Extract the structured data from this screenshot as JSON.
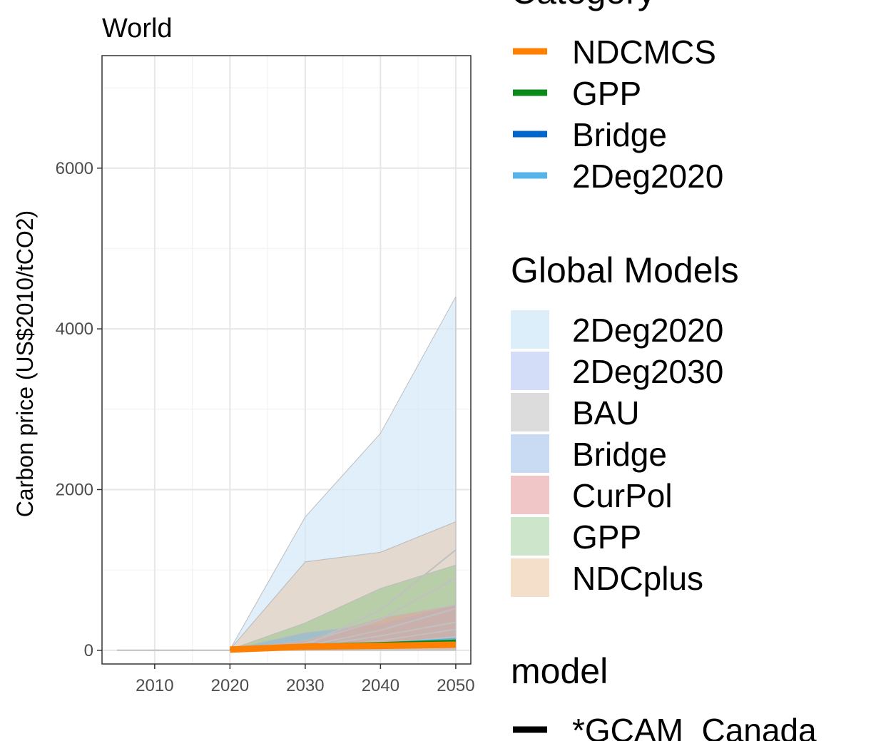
{
  "chart_data": {
    "type": "area",
    "title": "World",
    "ylabel": "Carbon price (US$2010/tCO2)",
    "xlabel": "",
    "xlim": [
      2003,
      2052
    ],
    "ylim": [
      -170,
      7400
    ],
    "x_ticks": [
      2010,
      2020,
      2030,
      2040,
      2050
    ],
    "x_tick_labels": [
      "2010",
      "2020",
      "2030",
      "2040",
      "2050"
    ],
    "y_ticks": [
      0,
      2000,
      4000,
      6000
    ],
    "y_tick_labels": [
      "0",
      "2000",
      "4000",
      "6000"
    ],
    "grid": true,
    "legend_position": "right",
    "ribbons": [
      {
        "scenario": "2Deg2020",
        "color": "#d6e9fa",
        "x": [
          2020,
          2030,
          2040,
          2050
        ],
        "lower": [
          0,
          0,
          0,
          0
        ],
        "upper": [
          10,
          1660,
          2700,
          4400
        ]
      },
      {
        "scenario": "2Deg2030",
        "color": "#c8d2f2",
        "x": [
          2020,
          2030,
          2040,
          2050
        ],
        "lower": [
          0,
          0,
          0,
          0
        ],
        "upper": [
          10,
          1100,
          1220,
          1600
        ]
      },
      {
        "scenario": "NDCplus",
        "color": "#ead8c0",
        "x": [
          2020,
          2030,
          2040,
          2050
        ],
        "lower": [
          0,
          0,
          0,
          0
        ],
        "upper": [
          10,
          1100,
          1220,
          1600
        ]
      },
      {
        "scenario": "GPP",
        "color": "#a8c99a",
        "x": [
          2020,
          2030,
          2040,
          2050
        ],
        "lower": [
          0,
          0,
          0,
          0
        ],
        "upper": [
          10,
          340,
          770,
          1060
        ]
      },
      {
        "scenario": "Bridge",
        "color": "#98b9d8",
        "x": [
          2020,
          2030,
          2040,
          2050
        ],
        "lower": [
          0,
          0,
          0,
          0
        ],
        "upper": [
          10,
          220,
          330,
          570
        ]
      },
      {
        "scenario": "CurPol",
        "color": "#d9aaa0",
        "x": [
          2020,
          2030,
          2040,
          2050
        ],
        "lower": [
          0,
          0,
          0,
          0
        ],
        "upper": [
          10,
          120,
          400,
          560
        ]
      },
      {
        "scenario": "BAU",
        "color": "#cccccc",
        "x": [
          2020,
          2030,
          2040,
          2050
        ],
        "lower": [
          0,
          0,
          0,
          0
        ],
        "upper": [
          10,
          40,
          60,
          90
        ]
      }
    ],
    "model_lines": [
      {
        "x": [
          2005,
          2020
        ],
        "values": [
          0,
          0
        ]
      },
      {
        "x": [
          2020,
          2030,
          2040,
          2050
        ],
        "values": [
          10,
          60,
          500,
          1250
        ]
      },
      {
        "x": [
          2020,
          2030,
          2040,
          2050
        ],
        "values": [
          10,
          90,
          380,
          900
        ]
      },
      {
        "x": [
          2020,
          2030,
          2040,
          2050
        ],
        "values": [
          10,
          50,
          250,
          520
        ]
      },
      {
        "x": [
          2020,
          2030,
          2040,
          2050
        ],
        "values": [
          10,
          40,
          180,
          350
        ]
      },
      {
        "x": [
          2020,
          2030,
          2040,
          2050
        ],
        "values": [
          10,
          30,
          120,
          260
        ]
      },
      {
        "x": [
          2020,
          2030,
          2040,
          2050
        ],
        "values": [
          10,
          25,
          80,
          170
        ]
      }
    ],
    "series": [
      {
        "name": "NDCMCS",
        "color": "#ff7f00",
        "x": [
          2020,
          2030,
          2040,
          2050
        ],
        "values": [
          10,
          45,
          55,
          70
        ]
      },
      {
        "name": "GPP",
        "color": "#0a8a18",
        "x": [
          2020,
          2030,
          2040,
          2050
        ],
        "values": [
          10,
          70,
          90,
          120
        ]
      },
      {
        "name": "Bridge",
        "color": "#0066cc",
        "x": [
          2020,
          2030,
          2040,
          2050
        ],
        "values": [
          10,
          60,
          80,
          110
        ]
      },
      {
        "name": "2Deg2020",
        "color": "#56b4e9",
        "x": [
          2020,
          2030,
          2040,
          2050
        ],
        "values": [
          10,
          65,
          85,
          140
        ]
      }
    ]
  },
  "legends": {
    "category": {
      "title": "Category",
      "items": [
        {
          "label": "NDCMCS",
          "color": "#ff7f00"
        },
        {
          "label": "GPP",
          "color": "#0a8a18"
        },
        {
          "label": "Bridge",
          "color": "#0066cc"
        },
        {
          "label": "2Deg2020",
          "color": "#56b4e9"
        }
      ]
    },
    "global_models": {
      "title": "Global Models",
      "items": [
        {
          "label": "2Deg2020",
          "color": "#ddeefb"
        },
        {
          "label": "2Deg2030",
          "color": "#d3ddf8"
        },
        {
          "label": "BAU",
          "color": "#dcdcdc"
        },
        {
          "label": "Bridge",
          "color": "#c9dbf2"
        },
        {
          "label": "CurPol",
          "color": "#f1c6c6"
        },
        {
          "label": "GPP",
          "color": "#cde5cb"
        },
        {
          "label": "NDCplus",
          "color": "#f4dfca"
        }
      ]
    },
    "model": {
      "title": "model",
      "items": [
        {
          "label": "*GCAM_Canada",
          "color": "#000000"
        }
      ]
    }
  }
}
